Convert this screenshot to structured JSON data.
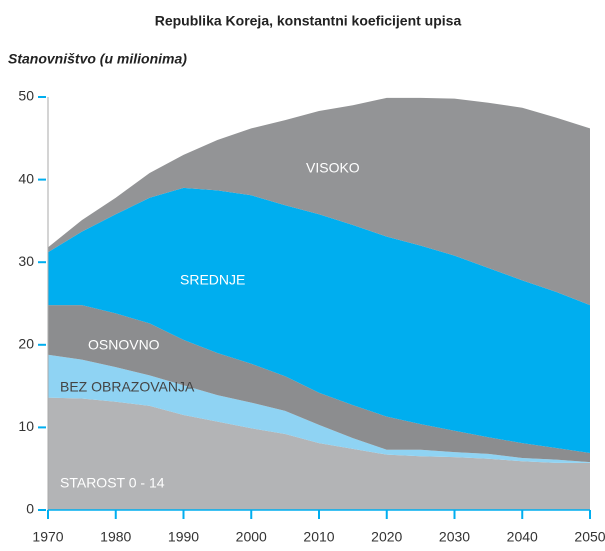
{
  "chart_data": {
    "type": "stacked_area",
    "title": "Republika Koreja, konstantni koeficijent upisa",
    "y_label": "Stanovništvo (u milionima)",
    "x": [
      1970,
      1975,
      1980,
      1985,
      1990,
      1995,
      2000,
      2005,
      2010,
      2015,
      2020,
      2025,
      2030,
      2035,
      2040,
      2045,
      2050
    ],
    "series": [
      {
        "name": "STAROST 0 - 14",
        "color": "#b3b4b6",
        "values": [
          13.6,
          13.5,
          13.1,
          12.6,
          11.5,
          10.7,
          9.9,
          9.2,
          8.1,
          7.4,
          6.7,
          6.5,
          6.4,
          6.2,
          5.9,
          5.7,
          5.7
        ]
      },
      {
        "name": "BEZ OBRAZOVANJA",
        "color": "#8fd3f3",
        "values": [
          5.2,
          4.7,
          4.2,
          3.7,
          3.6,
          3.2,
          3.1,
          2.8,
          2.2,
          1.3,
          0.6,
          0.8,
          0.6,
          0.6,
          0.4,
          0.4,
          0.1
        ]
      },
      {
        "name": "OSNOVNO",
        "color": "#8c8d8f",
        "values": [
          6.0,
          6.6,
          6.5,
          6.3,
          5.5,
          5.1,
          4.7,
          4.2,
          3.9,
          4.0,
          4.0,
          3.1,
          2.6,
          2.0,
          1.8,
          1.4,
          1.1
        ]
      },
      {
        "name": "SREDNJE",
        "color": "#00aeef",
        "values": [
          6.4,
          8.9,
          12.0,
          15.2,
          18.4,
          19.7,
          20.4,
          20.7,
          21.6,
          21.8,
          21.8,
          21.6,
          21.2,
          20.5,
          19.7,
          18.9,
          17.9
        ]
      },
      {
        "name": "VISOKO",
        "color": "#939496",
        "values": [
          0.6,
          1.4,
          2.0,
          3.0,
          4.0,
          6.1,
          8.1,
          10.3,
          12.5,
          14.5,
          16.8,
          17.9,
          19.0,
          20.0,
          20.9,
          21.1,
          21.4
        ]
      }
    ],
    "xlim": [
      1970,
      2050
    ],
    "xticks": [
      1970,
      1980,
      1990,
      2000,
      2010,
      2020,
      2030,
      2040,
      2050
    ],
    "ylim": [
      0,
      50
    ],
    "yticks": [
      0,
      10,
      20,
      30,
      40,
      50
    ]
  }
}
